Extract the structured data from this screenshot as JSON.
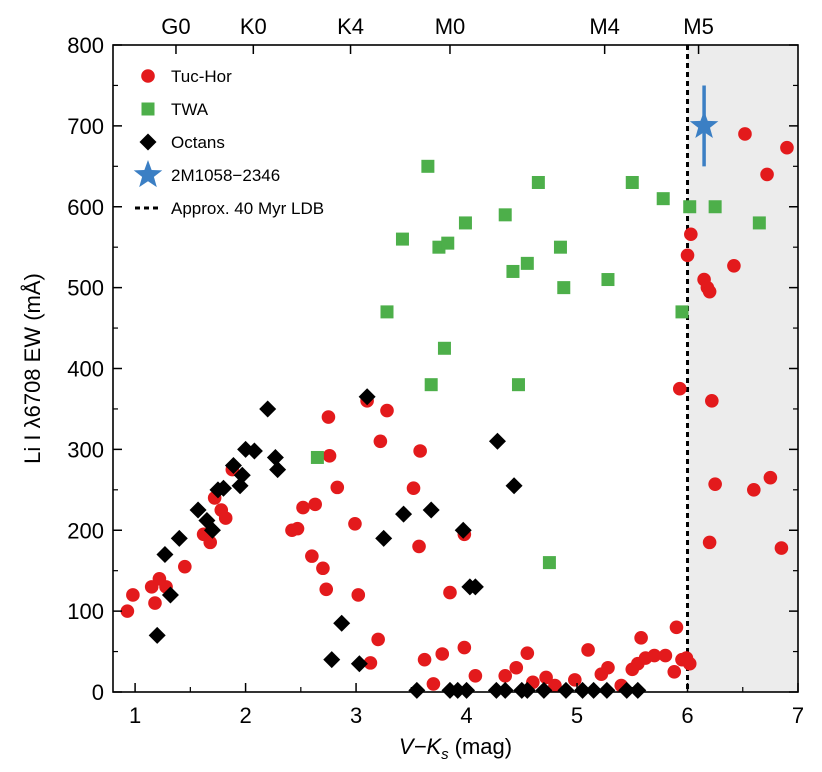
{
  "chart_data": {
    "type": "scatter",
    "xlabel": "V−K",
    "xlabel_subscript": "s",
    "xlabel_unit": "(mag)",
    "ylabel": "Li I λ6708 EW (mÅ)",
    "xlim": [
      0.8,
      7
    ],
    "ylim": [
      0,
      800
    ],
    "xticks": [
      1,
      2,
      3,
      4,
      5,
      6,
      7
    ],
    "yticks": [
      0,
      100,
      200,
      300,
      400,
      500,
      600,
      700,
      800
    ],
    "spectral_types": [
      {
        "label": "G0",
        "x": 1.37
      },
      {
        "label": "K0",
        "x": 2.07
      },
      {
        "label": "K4",
        "x": 2.95
      },
      {
        "label": "M0",
        "x": 3.85
      },
      {
        "label": "M4",
        "x": 5.25
      },
      {
        "label": "M5",
        "x": 6.1
      }
    ],
    "ldb": {
      "x": 6.0,
      "label": "Approx. 40 Myr LDB"
    },
    "shaded_region": {
      "x_from": 6.0,
      "x_to": 7.0
    },
    "colors": {
      "tuc_hor": "#e31a1c",
      "twa": "#4daf4a",
      "octans": "#000000",
      "target": "#3b7fc4",
      "shade": "#ececec"
    },
    "legend": [
      {
        "label": "Tuc-Hor",
        "marker": "circle"
      },
      {
        "label": "TWA",
        "marker": "square"
      },
      {
        "label": "Octans",
        "marker": "diamond"
      },
      {
        "label": "2M1058−2346",
        "marker": "star"
      },
      {
        "label": "Approx. 40 Myr LDB",
        "marker": "dashed-line"
      }
    ],
    "series": [
      {
        "name": "Tuc-Hor",
        "marker": "circle",
        "points": [
          [
            0.93,
            100
          ],
          [
            0.98,
            120
          ],
          [
            1.15,
            130
          ],
          [
            1.18,
            110
          ],
          [
            1.22,
            140
          ],
          [
            1.28,
            130
          ],
          [
            1.45,
            155
          ],
          [
            1.62,
            195
          ],
          [
            1.68,
            185
          ],
          [
            1.72,
            240
          ],
          [
            1.78,
            225
          ],
          [
            1.82,
            215
          ],
          [
            1.88,
            275
          ],
          [
            2.42,
            200
          ],
          [
            2.47,
            202
          ],
          [
            2.52,
            228
          ],
          [
            2.6,
            168
          ],
          [
            2.63,
            232
          ],
          [
            2.7,
            153
          ],
          [
            2.73,
            127
          ],
          [
            2.75,
            340
          ],
          [
            2.76,
            292
          ],
          [
            2.83,
            253
          ],
          [
            2.99,
            208
          ],
          [
            3.02,
            120
          ],
          [
            3.1,
            360
          ],
          [
            3.13,
            36
          ],
          [
            3.2,
            65
          ],
          [
            3.22,
            310
          ],
          [
            3.28,
            348
          ],
          [
            3.52,
            252
          ],
          [
            3.57,
            180
          ],
          [
            3.58,
            298
          ],
          [
            3.62,
            40
          ],
          [
            3.7,
            10
          ],
          [
            3.78,
            47
          ],
          [
            3.85,
            123
          ],
          [
            3.98,
            195
          ],
          [
            3.98,
            55
          ],
          [
            4.08,
            20
          ],
          [
            4.35,
            20
          ],
          [
            4.45,
            30
          ],
          [
            4.55,
            48
          ],
          [
            4.6,
            12
          ],
          [
            4.72,
            18
          ],
          [
            4.8,
            8
          ],
          [
            4.98,
            15
          ],
          [
            5.1,
            52
          ],
          [
            5.22,
            22
          ],
          [
            5.28,
            30
          ],
          [
            5.4,
            8
          ],
          [
            5.5,
            28
          ],
          [
            5.55,
            35
          ],
          [
            5.58,
            67
          ],
          [
            5.62,
            42
          ],
          [
            5.7,
            45
          ],
          [
            5.8,
            45
          ],
          [
            5.88,
            25
          ],
          [
            5.9,
            80
          ],
          [
            5.95,
            40
          ],
          [
            5.93,
            375
          ],
          [
            5.99,
            42
          ],
          [
            6.02,
            35
          ],
          [
            6.0,
            540
          ],
          [
            6.03,
            566
          ],
          [
            6.15,
            510
          ],
          [
            6.18,
            500
          ],
          [
            6.2,
            495
          ],
          [
            6.22,
            360
          ],
          [
            6.25,
            257
          ],
          [
            6.42,
            527
          ],
          [
            6.52,
            690
          ],
          [
            6.6,
            250
          ],
          [
            6.72,
            640
          ],
          [
            6.75,
            265
          ],
          [
            6.85,
            178
          ],
          [
            6.9,
            673
          ],
          [
            6.2,
            185
          ]
        ]
      },
      {
        "name": "TWA",
        "marker": "square",
        "points": [
          [
            2.65,
            290
          ],
          [
            3.28,
            470
          ],
          [
            3.42,
            560
          ],
          [
            3.65,
            650
          ],
          [
            3.68,
            380
          ],
          [
            3.75,
            550
          ],
          [
            3.8,
            425
          ],
          [
            3.83,
            555
          ],
          [
            3.99,
            580
          ],
          [
            4.35,
            590
          ],
          [
            4.42,
            520
          ],
          [
            4.47,
            380
          ],
          [
            4.55,
            530
          ],
          [
            4.65,
            630
          ],
          [
            4.75,
            160
          ],
          [
            4.85,
            550
          ],
          [
            4.88,
            500
          ],
          [
            5.28,
            510
          ],
          [
            5.5,
            630
          ],
          [
            5.78,
            610
          ],
          [
            5.95,
            470
          ],
          [
            6.02,
            600
          ],
          [
            6.25,
            600
          ],
          [
            6.65,
            580
          ]
        ]
      },
      {
        "name": "Octans",
        "marker": "diamond",
        "points": [
          [
            1.2,
            70
          ],
          [
            1.27,
            170
          ],
          [
            1.32,
            120
          ],
          [
            1.4,
            190
          ],
          [
            1.57,
            225
          ],
          [
            1.65,
            212
          ],
          [
            1.7,
            200
          ],
          [
            1.75,
            250
          ],
          [
            1.8,
            252
          ],
          [
            1.89,
            280
          ],
          [
            1.95,
            255
          ],
          [
            1.97,
            268
          ],
          [
            2.0,
            300
          ],
          [
            2.08,
            298
          ],
          [
            2.2,
            350
          ],
          [
            2.27,
            290
          ],
          [
            2.29,
            275
          ],
          [
            2.78,
            40
          ],
          [
            2.87,
            85
          ],
          [
            3.03,
            35
          ],
          [
            3.1,
            365
          ],
          [
            3.25,
            190
          ],
          [
            3.43,
            220
          ],
          [
            3.68,
            225
          ],
          [
            3.97,
            200
          ],
          [
            4.03,
            130
          ],
          [
            4.08,
            130
          ],
          [
            4.28,
            310
          ],
          [
            4.43,
            255
          ],
          [
            3.55,
            2
          ],
          [
            3.85,
            2
          ],
          [
            3.92,
            2
          ],
          [
            4.0,
            2
          ],
          [
            4.27,
            2
          ],
          [
            4.35,
            2
          ],
          [
            4.5,
            2
          ],
          [
            4.55,
            2
          ],
          [
            4.7,
            2
          ],
          [
            4.9,
            2
          ],
          [
            5.05,
            2
          ],
          [
            5.15,
            2
          ],
          [
            5.27,
            2
          ],
          [
            5.45,
            2
          ],
          [
            5.55,
            2
          ]
        ]
      }
    ],
    "target": {
      "name": "2M1058−2346",
      "x": 6.15,
      "y": 700,
      "yerr": 50
    }
  }
}
